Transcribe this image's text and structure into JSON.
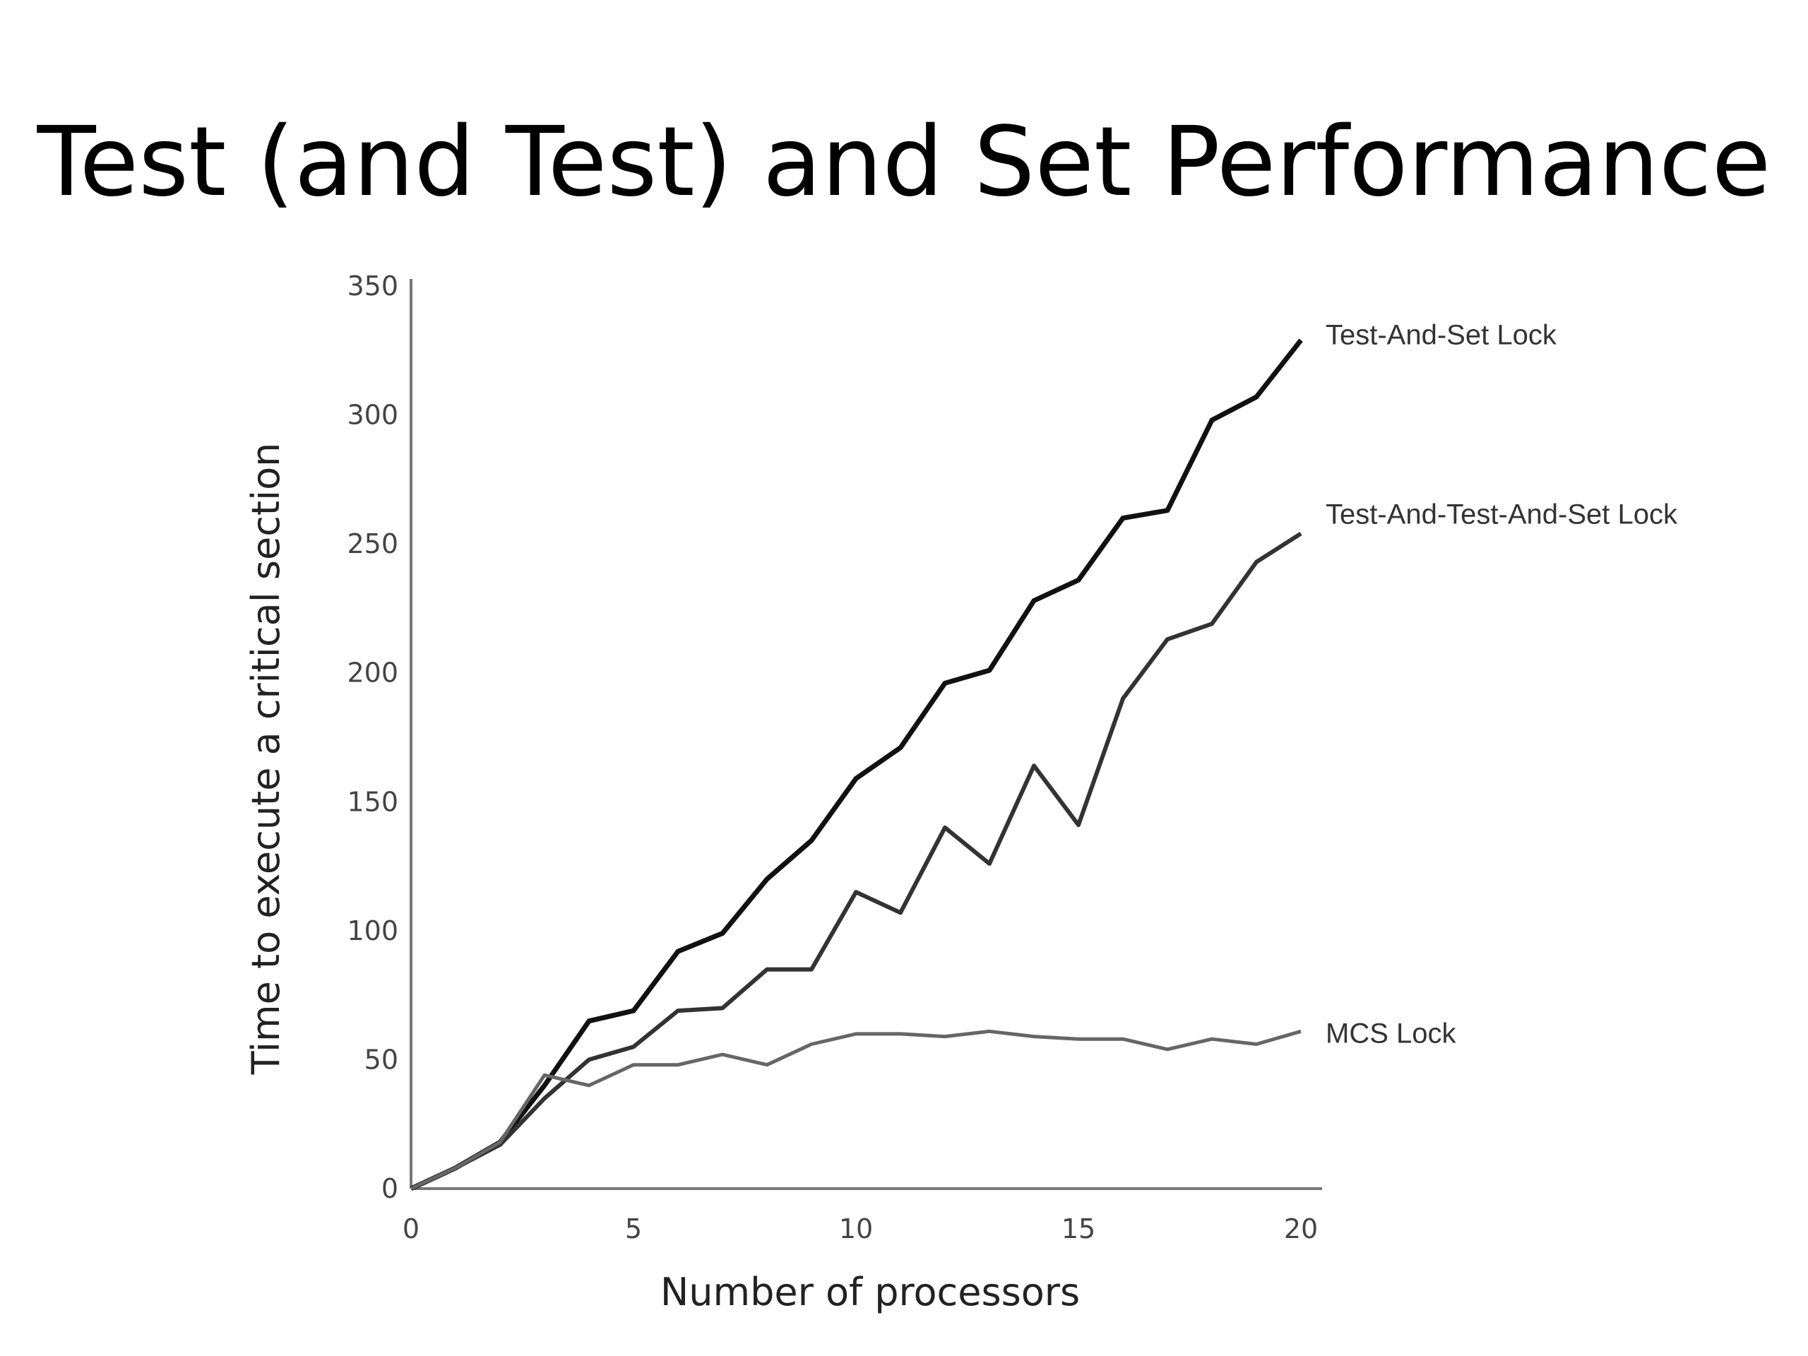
{
  "slide": {
    "title": "Test (and Test) and Set Performance"
  },
  "chart_data": {
    "type": "line",
    "xlabel": "Number of processors",
    "ylabel": "Time to execute a critical section",
    "xlim": [
      0,
      20
    ],
    "ylim": [
      0,
      350
    ],
    "xticks": [
      0,
      5,
      10,
      15,
      20
    ],
    "yticks": [
      0,
      50,
      100,
      150,
      200,
      250,
      300,
      350
    ],
    "grid": false,
    "legend": "inline labels at line ends",
    "x": [
      0,
      1,
      2,
      3,
      4,
      5,
      6,
      7,
      8,
      9,
      10,
      11,
      12,
      13,
      14,
      15,
      16,
      17,
      18,
      19,
      20
    ],
    "series": [
      {
        "name": "Test-And-Set Lock",
        "color": "#111111",
        "values": [
          0,
          8,
          18,
          40,
          65,
          69,
          92,
          99,
          120,
          135,
          159,
          171,
          196,
          201,
          228,
          236,
          260,
          263,
          298,
          307,
          329
        ]
      },
      {
        "name": "Test-And-Test-And-Set Lock",
        "color": "#333333",
        "values": [
          0,
          8,
          17,
          35,
          50,
          55,
          69,
          70,
          85,
          85,
          115,
          107,
          140,
          126,
          164,
          141,
          190,
          213,
          219,
          243,
          254
        ]
      },
      {
        "name": "MCS Lock",
        "color": "#666666",
        "values": [
          0,
          8,
          18,
          44,
          40,
          48,
          48,
          52,
          48,
          56,
          60,
          60,
          59,
          61,
          59,
          58,
          58,
          54,
          58,
          56,
          61
        ]
      }
    ]
  }
}
